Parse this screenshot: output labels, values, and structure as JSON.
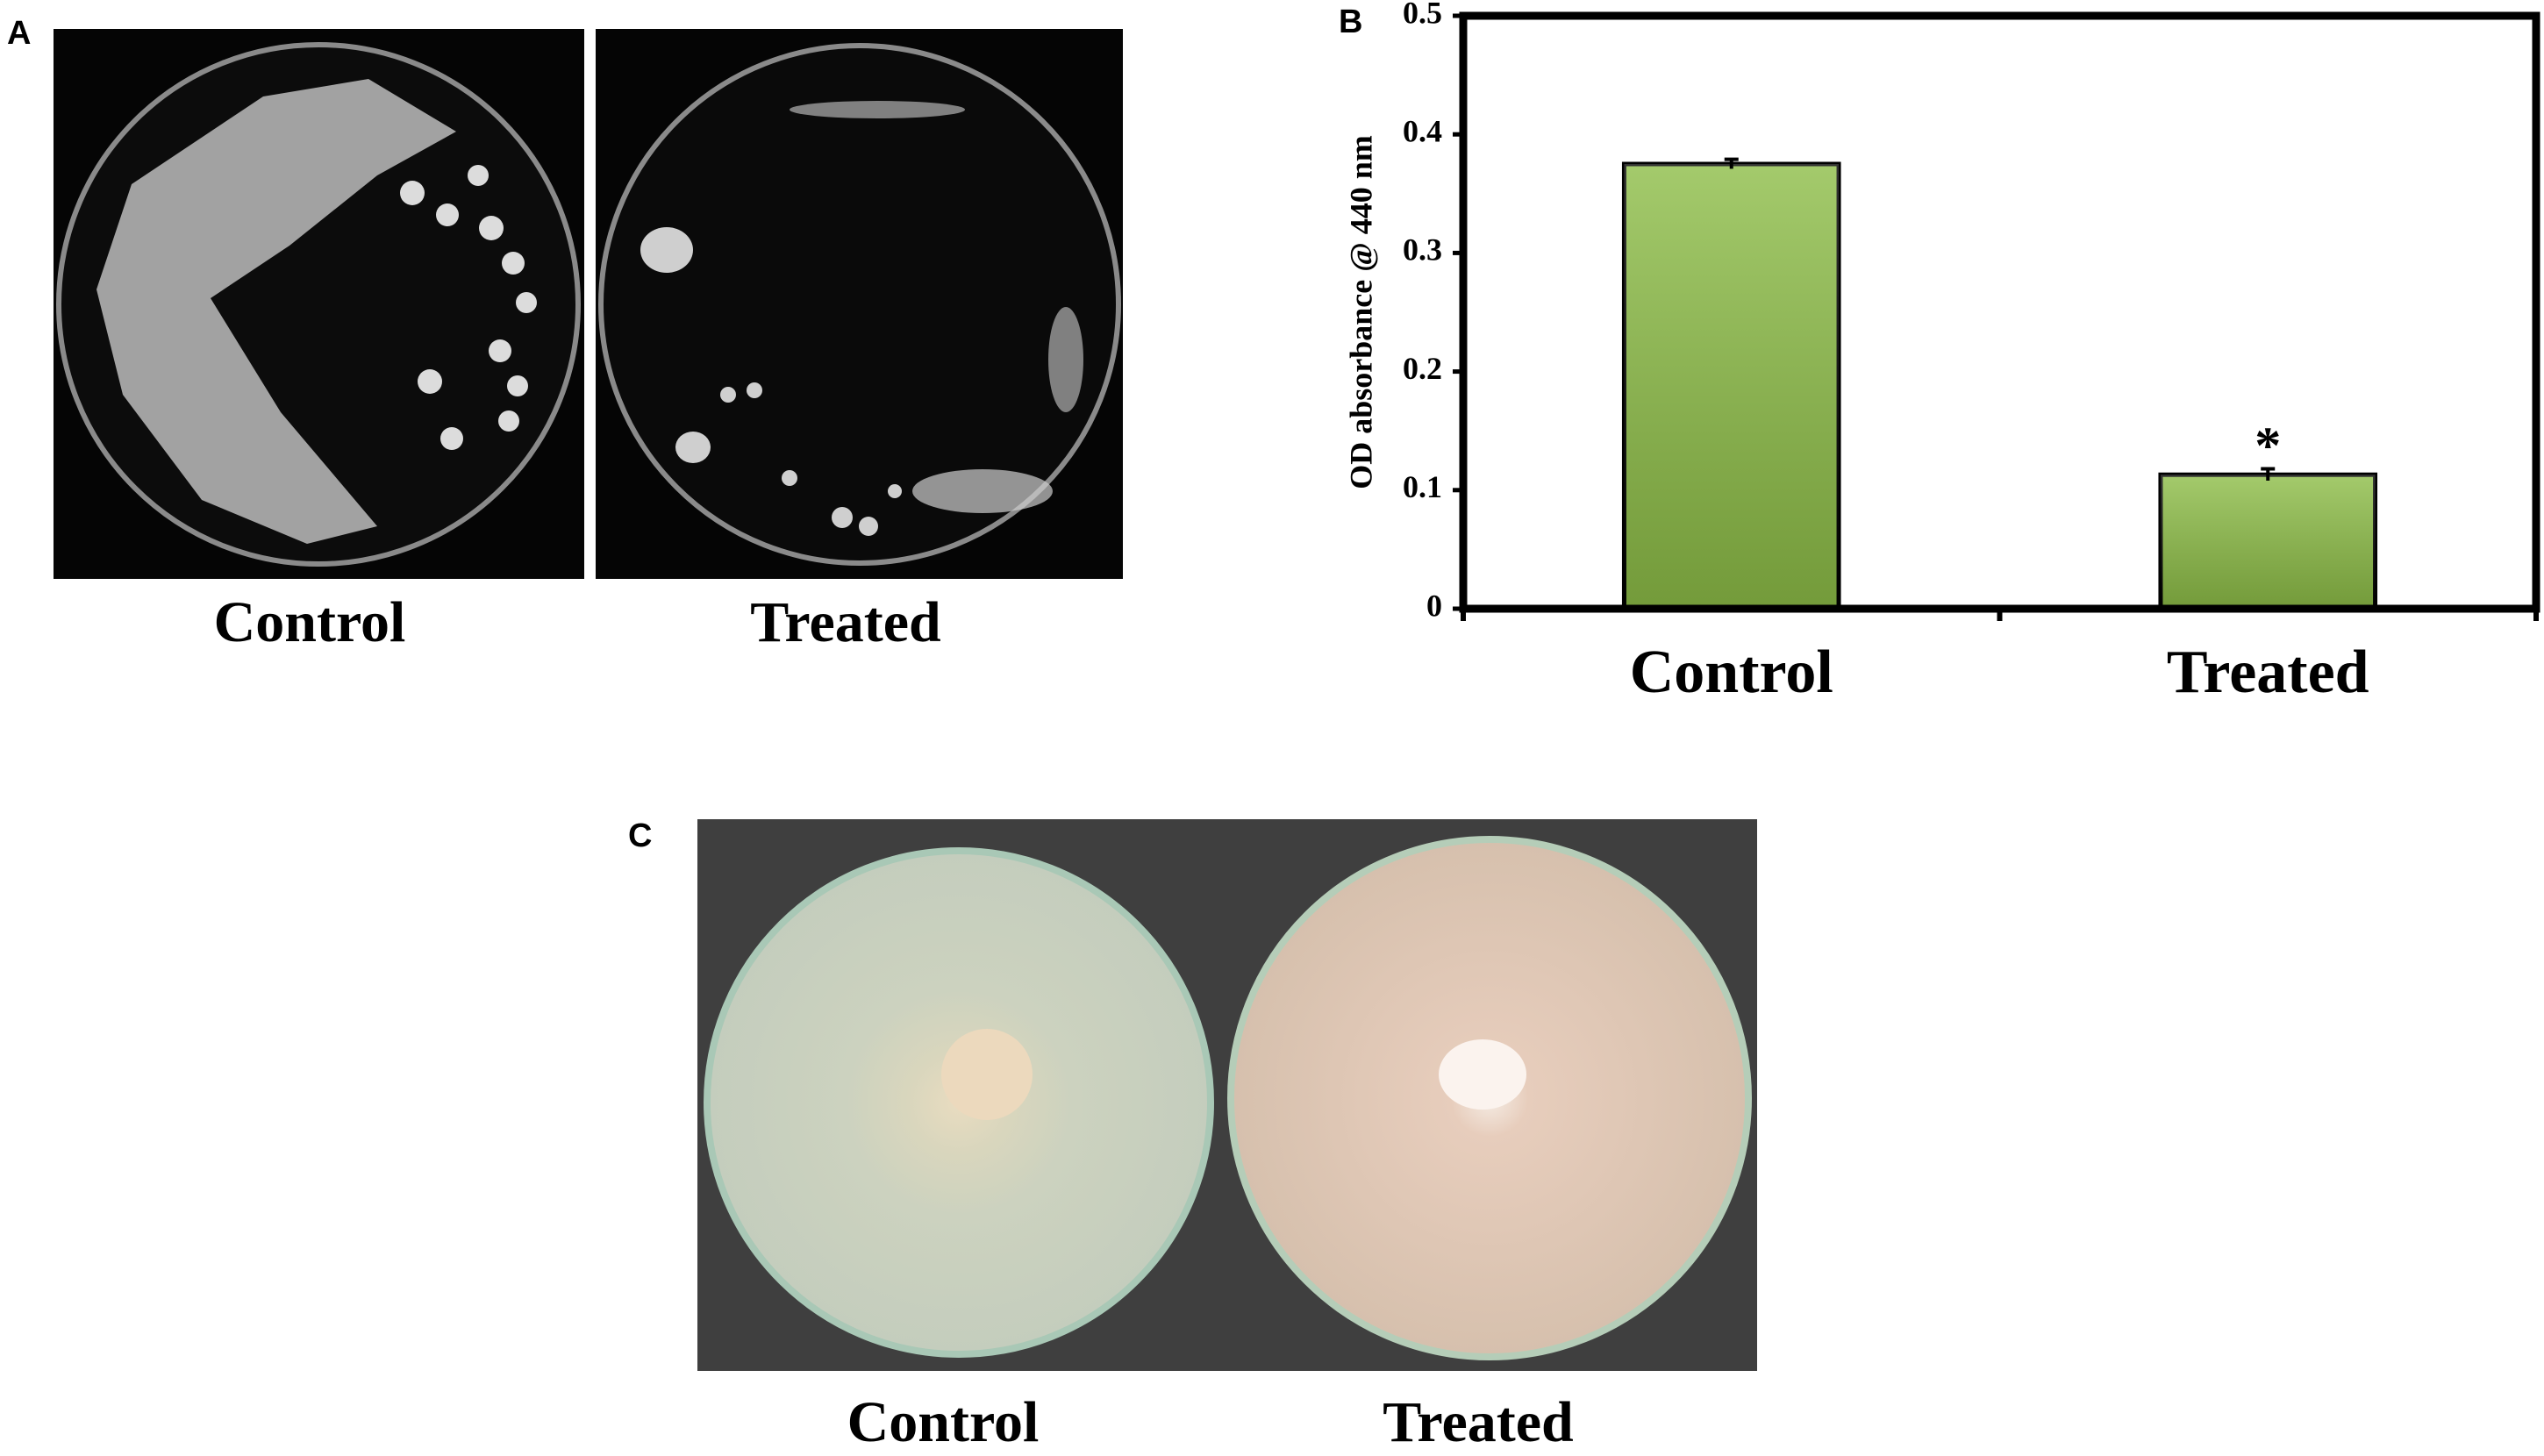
{
  "panel_a": {
    "label": "A",
    "captions": [
      "Control",
      "Treated"
    ]
  },
  "chart_data": {
    "type": "bar",
    "panel_label": "B",
    "ylabel": "OD absorbance @ 440 nm",
    "categories": [
      "Control",
      "Treated"
    ],
    "values": [
      0.375,
      0.113
    ],
    "errors": [
      0.004,
      0.005
    ],
    "annotations": [
      "",
      "*"
    ],
    "color": "#8dbd47",
    "ylim": [
      0,
      0.5
    ],
    "yticks": [
      0,
      0.1,
      0.2,
      0.3,
      0.4,
      0.5
    ],
    "grid": false
  },
  "panel_c": {
    "label": "C",
    "captions": [
      "Control",
      "Treated"
    ]
  }
}
